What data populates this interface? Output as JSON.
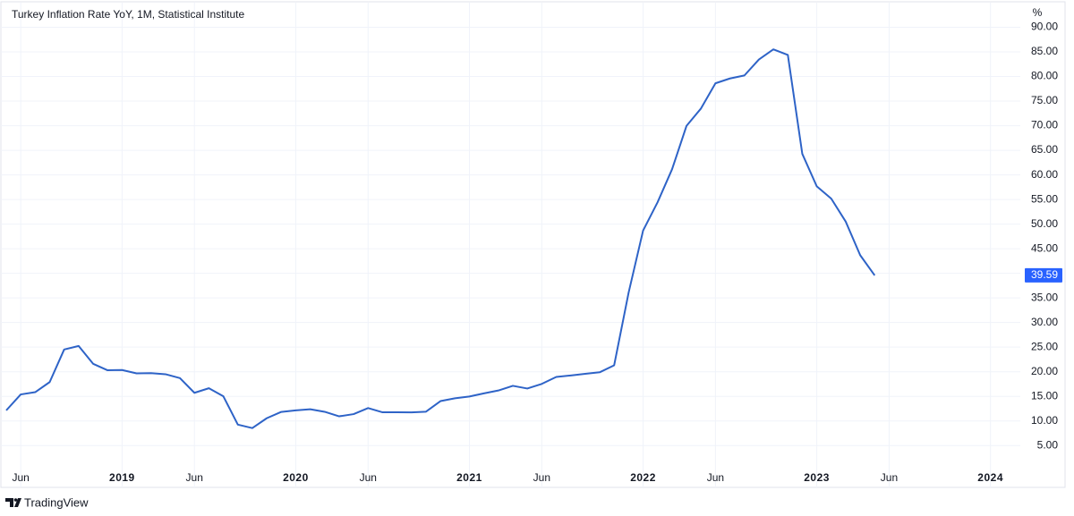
{
  "chart_data": {
    "type": "line",
    "title": "Turkey Inflation Rate YoY, 1M, Statistical Institute",
    "y_unit": "%",
    "x": [
      "2018-05",
      "2018-06",
      "2018-07",
      "2018-08",
      "2018-09",
      "2018-10",
      "2018-11",
      "2018-12",
      "2019-01",
      "2019-02",
      "2019-03",
      "2019-04",
      "2019-05",
      "2019-06",
      "2019-07",
      "2019-08",
      "2019-09",
      "2019-10",
      "2019-11",
      "2019-12",
      "2020-01",
      "2020-02",
      "2020-03",
      "2020-04",
      "2020-05",
      "2020-06",
      "2020-07",
      "2020-08",
      "2020-09",
      "2020-10",
      "2020-11",
      "2020-12",
      "2021-01",
      "2021-02",
      "2021-03",
      "2021-04",
      "2021-05",
      "2021-06",
      "2021-07",
      "2021-08",
      "2021-09",
      "2021-10",
      "2021-11",
      "2021-12",
      "2022-01",
      "2022-02",
      "2022-03",
      "2022-04",
      "2022-05",
      "2022-06",
      "2022-07",
      "2022-08",
      "2022-09",
      "2022-10",
      "2022-11",
      "2022-12",
      "2023-01",
      "2023-02",
      "2023-03",
      "2023-04",
      "2023-05"
    ],
    "series": [
      {
        "name": "Turkey Inflation Rate YoY",
        "color": "#2e63c7",
        "values": [
          12.15,
          15.39,
          15.85,
          17.9,
          24.52,
          25.24,
          21.62,
          20.3,
          20.35,
          19.67,
          19.71,
          19.5,
          18.71,
          15.72,
          16.65,
          15.01,
          9.26,
          8.55,
          10.56,
          11.84,
          12.15,
          12.37,
          11.86,
          10.94,
          11.39,
          12.62,
          11.76,
          11.77,
          11.75,
          11.89,
          14.03,
          14.6,
          14.97,
          15.61,
          16.19,
          17.14,
          16.59,
          17.53,
          18.95,
          19.25,
          19.58,
          19.89,
          21.31,
          36.08,
          48.69,
          54.44,
          61.14,
          69.97,
          73.5,
          78.62,
          79.6,
          80.21,
          83.45,
          85.51,
          84.39,
          64.27,
          57.68,
          55.18,
          50.51,
          43.68,
          39.59
        ]
      }
    ],
    "last_value_color": "#2962ff",
    "xlim": [
      "2018-05",
      "2024-03"
    ],
    "xticks": [
      {
        "value": "2018-06",
        "label": "Jun"
      },
      {
        "value": "2019-01",
        "label": "2019"
      },
      {
        "value": "2019-06",
        "label": "Jun"
      },
      {
        "value": "2020-01",
        "label": "2020"
      },
      {
        "value": "2020-06",
        "label": "Jun"
      },
      {
        "value": "2021-01",
        "label": "2021"
      },
      {
        "value": "2021-06",
        "label": "Jun"
      },
      {
        "value": "2022-01",
        "label": "2022"
      },
      {
        "value": "2022-06",
        "label": "Jun"
      },
      {
        "value": "2023-01",
        "label": "2023"
      },
      {
        "value": "2023-06",
        "label": "Jun"
      },
      {
        "value": "2024-01",
        "label": "2024"
      }
    ],
    "ylim": [
      -3.5,
      95
    ],
    "yticks": [
      {
        "value": 5,
        "label": "5.00"
      },
      {
        "value": 10,
        "label": "10.00"
      },
      {
        "value": 15,
        "label": "15.00"
      },
      {
        "value": 20,
        "label": "20.00"
      },
      {
        "value": 25,
        "label": "25.00"
      },
      {
        "value": 30,
        "label": "30.00"
      },
      {
        "value": 35,
        "label": "35.00"
      },
      {
        "value": 40,
        "label": "40.00"
      },
      {
        "value": 45,
        "label": "45.00"
      },
      {
        "value": 50,
        "label": "50.00"
      },
      {
        "value": 55,
        "label": "55.00"
      },
      {
        "value": 60,
        "label": "60.00"
      },
      {
        "value": 65,
        "label": "65.00"
      },
      {
        "value": 70,
        "label": "70.00"
      },
      {
        "value": 75,
        "label": "75.00"
      },
      {
        "value": 80,
        "label": "80.00"
      },
      {
        "value": 85,
        "label": "85.00"
      },
      {
        "value": 90,
        "label": "90.00"
      }
    ],
    "grid": true
  },
  "brand": "TradingView"
}
